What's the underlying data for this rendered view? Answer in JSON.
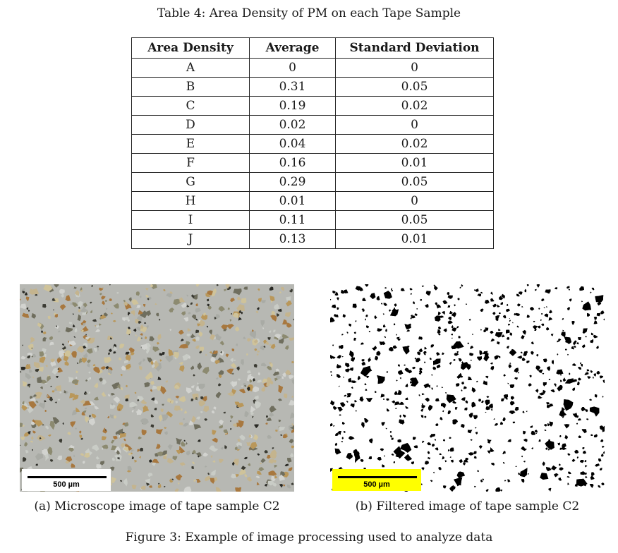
{
  "table": {
    "caption": "Table 4: Area Density of PM on each Tape Sample",
    "headers": [
      "Area Density",
      "Average",
      "Standard Deviation"
    ],
    "rows": [
      [
        "A",
        "0",
        "0"
      ],
      [
        "B",
        "0.31",
        "0.05"
      ],
      [
        "C",
        "0.19",
        "0.02"
      ],
      [
        "D",
        "0.02",
        "0"
      ],
      [
        "E",
        "0.04",
        "0.02"
      ],
      [
        "F",
        "0.16",
        "0.01"
      ],
      [
        "G",
        "0.29",
        "0.05"
      ],
      [
        "H",
        "0.01",
        "0"
      ],
      [
        "I",
        "0.11",
        "0.05"
      ],
      [
        "J",
        "0.13",
        "0.01"
      ]
    ]
  },
  "figure": {
    "caption": "Figure 3: Example of image processing used to analyze data",
    "subfigures": [
      {
        "caption": "(a) Microscope image of tape sample C2",
        "scale_bar_label": "500 µm",
        "scale_bar_color": "#ffffff"
      },
      {
        "caption": "(b) Filtered image of tape sample C2",
        "scale_bar_label": "500 µm",
        "scale_bar_color": "#ffff00"
      }
    ]
  }
}
